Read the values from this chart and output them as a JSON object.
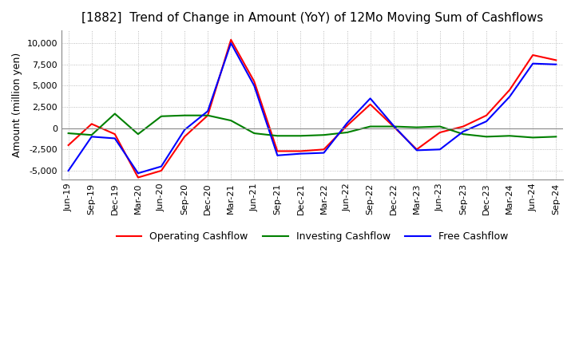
{
  "title": "[1882]  Trend of Change in Amount (YoY) of 12Mo Moving Sum of Cashflows",
  "ylabel": "Amount (million yen)",
  "x_labels": [
    "Jun-19",
    "Sep-19",
    "Dec-19",
    "Mar-20",
    "Jun-20",
    "Sep-20",
    "Dec-20",
    "Mar-21",
    "Jun-21",
    "Sep-21",
    "Dec-21",
    "Mar-22",
    "Jun-22",
    "Sep-22",
    "Dec-22",
    "Mar-23",
    "Jun-23",
    "Sep-23",
    "Dec-23",
    "Mar-24",
    "Jun-24",
    "Sep-24"
  ],
  "operating": [
    -2000,
    500,
    -700,
    -5800,
    -5000,
    -1000,
    1500,
    10400,
    5500,
    -2700,
    -2700,
    -2500,
    300,
    2800,
    200,
    -2500,
    -500,
    200,
    1500,
    4500,
    8600,
    8000
  ],
  "investing": [
    -600,
    -800,
    1700,
    -700,
    1400,
    1500,
    1500,
    900,
    -600,
    -900,
    -900,
    -800,
    -500,
    200,
    200,
    100,
    200,
    -700,
    -1000,
    -900,
    -1100,
    -1000
  ],
  "free": [
    -5000,
    -1000,
    -1200,
    -5300,
    -4500,
    -200,
    2000,
    10000,
    5000,
    -3200,
    -3000,
    -2900,
    600,
    3500,
    300,
    -2600,
    -2500,
    -400,
    800,
    3700,
    7600,
    7500
  ],
  "ylim": [
    -6000,
    11500
  ],
  "yticks": [
    -5000,
    -2500,
    0,
    2500,
    5000,
    7500,
    10000
  ],
  "operating_color": "#ff0000",
  "investing_color": "#008000",
  "free_color": "#0000ff",
  "grid_color": "#aaaaaa",
  "background_color": "#ffffff",
  "title_fontsize": 11,
  "label_fontsize": 9,
  "tick_fontsize": 8,
  "legend_fontsize": 9
}
